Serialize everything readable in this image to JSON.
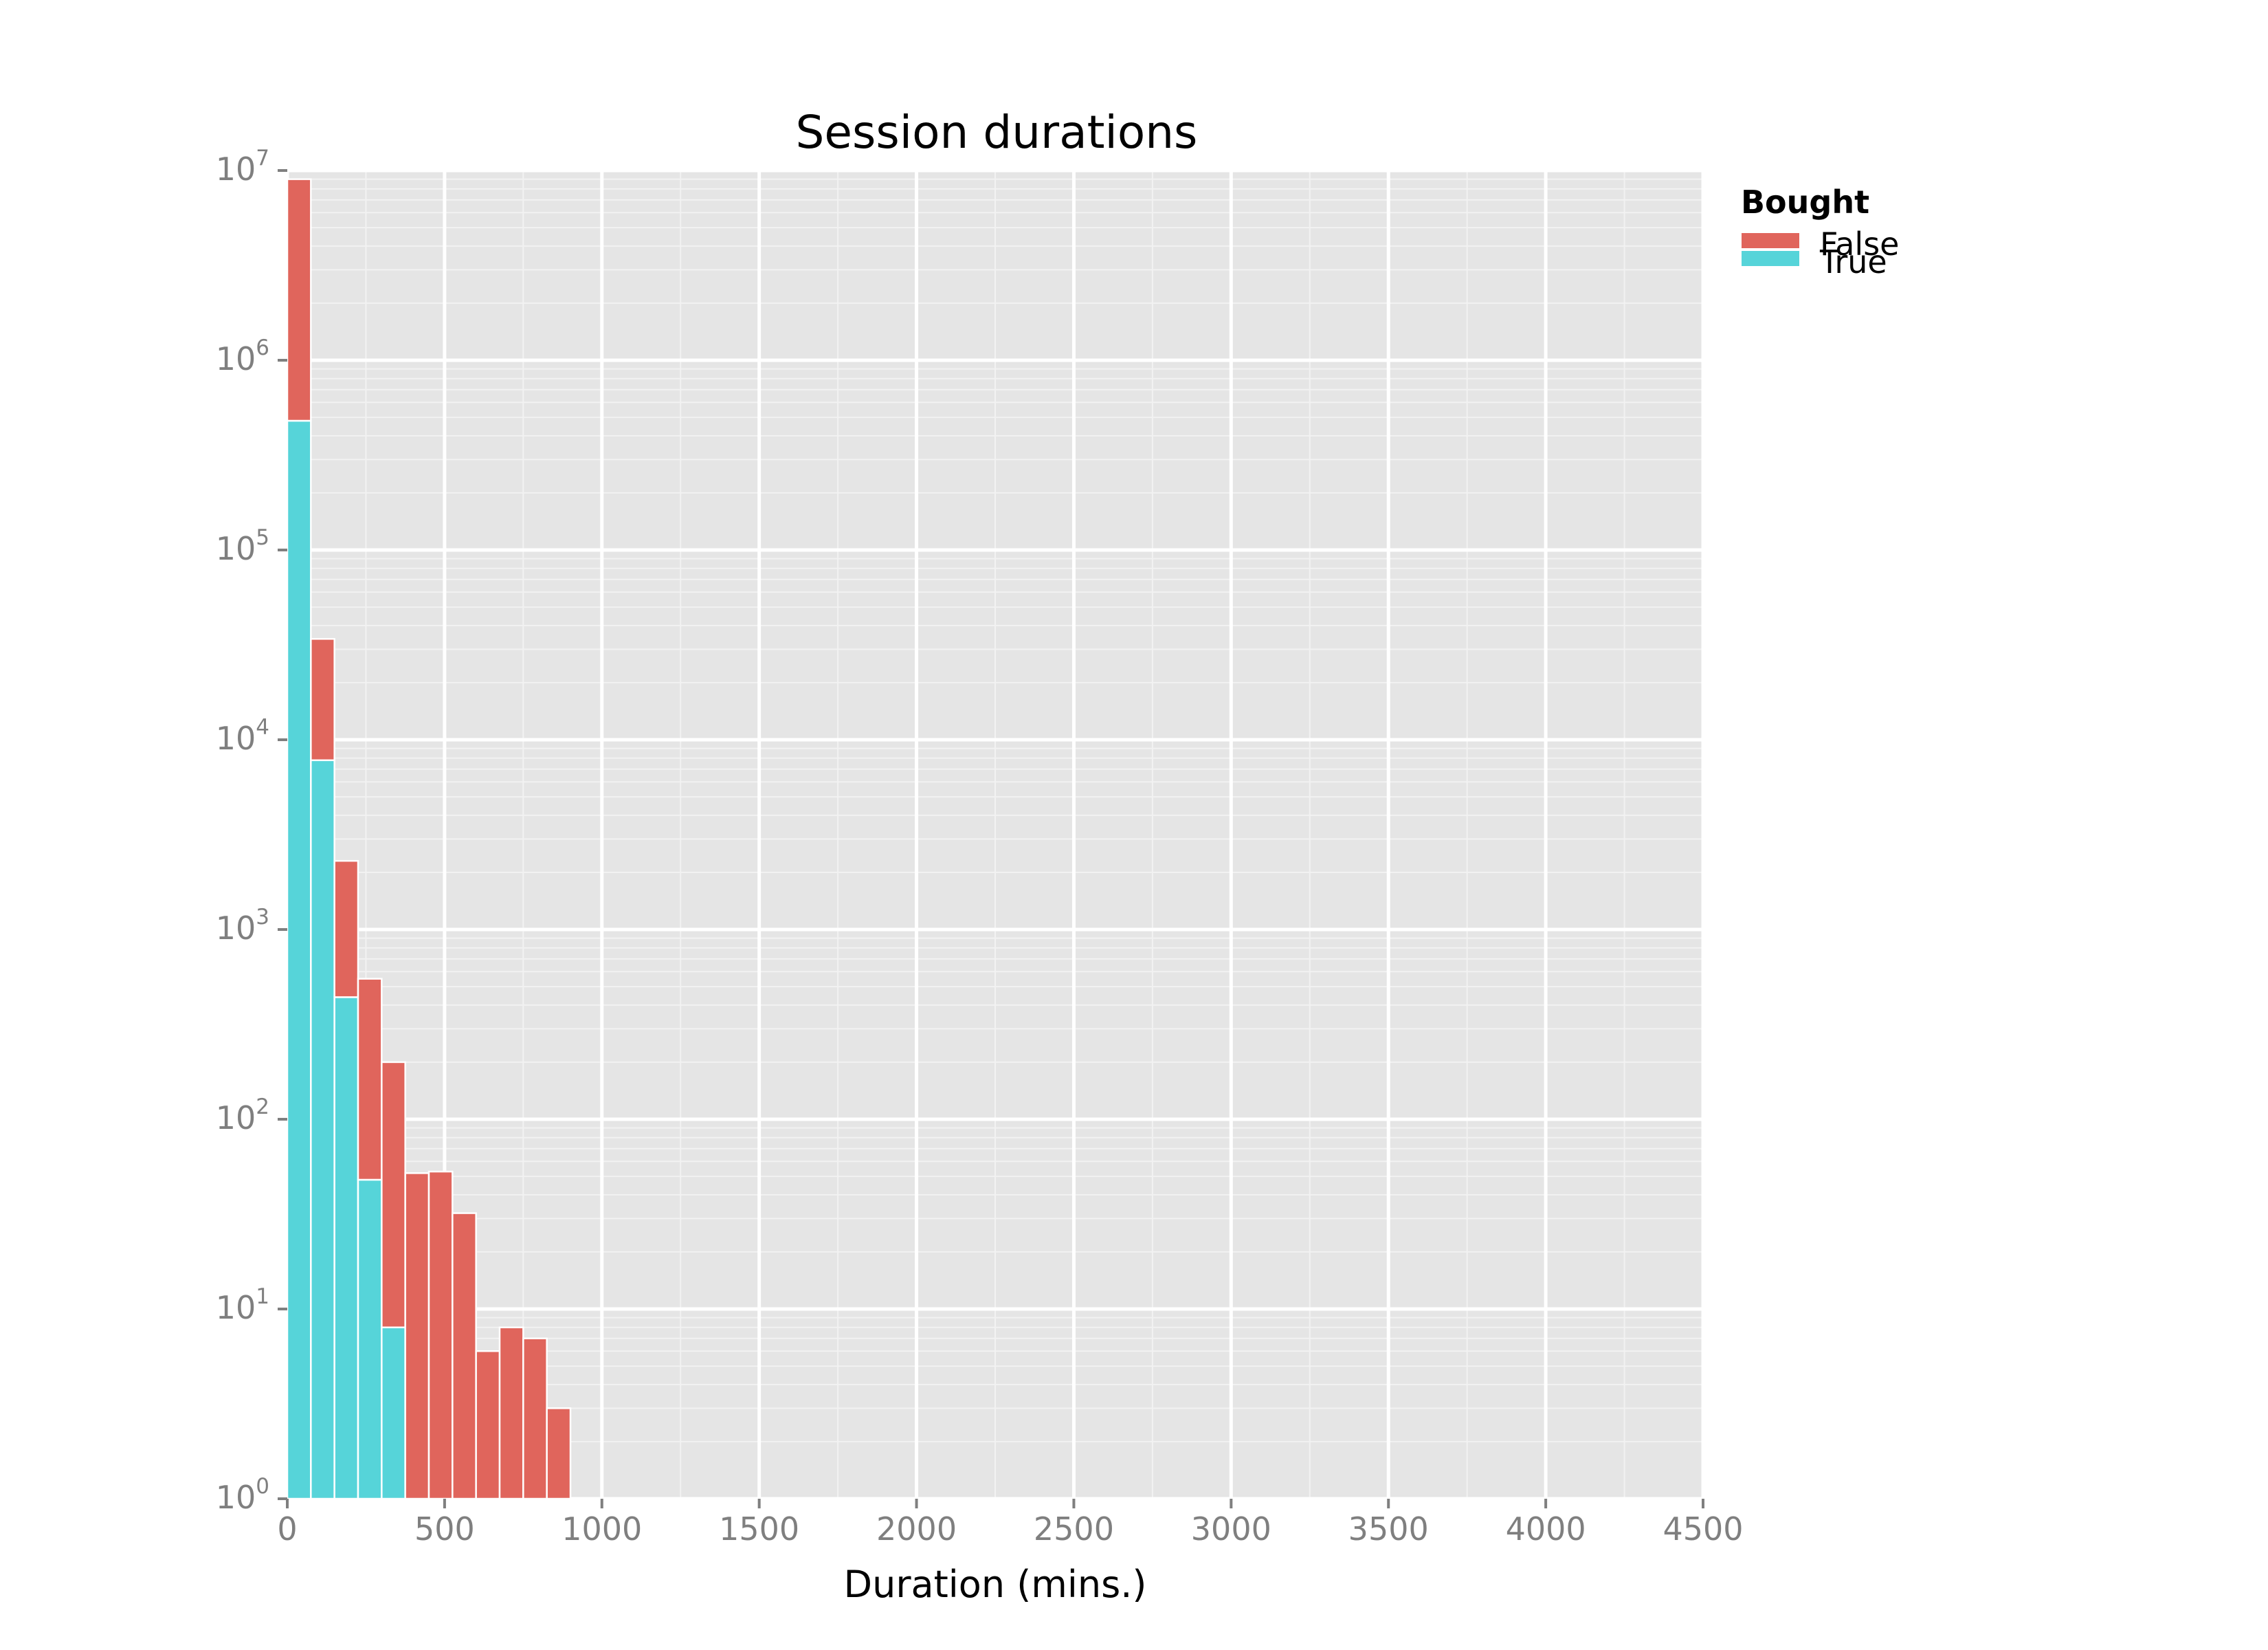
{
  "chart_data": {
    "type": "bar",
    "stacked": true,
    "title": "Session durations",
    "xlabel": "Duration (mins.)",
    "ylabel": "",
    "xlim": [
      0,
      4500
    ],
    "ylim": [
      1,
      10000000
    ],
    "yscale": "log",
    "grid": true,
    "bin_width": 75,
    "xticks": [
      "0",
      "500",
      "1000",
      "1500",
      "2000",
      "2500",
      "3000",
      "3500",
      "4000",
      "4500"
    ],
    "yticks": [
      {
        "base": "10",
        "exp": "0"
      },
      {
        "base": "10",
        "exp": "1"
      },
      {
        "base": "10",
        "exp": "2"
      },
      {
        "base": "10",
        "exp": "3"
      },
      {
        "base": "10",
        "exp": "4"
      },
      {
        "base": "10",
        "exp": "5"
      },
      {
        "base": "10",
        "exp": "6"
      },
      {
        "base": "10",
        "exp": "7"
      }
    ],
    "legend": {
      "title": "Bought",
      "position": "right"
    },
    "bins": [
      0,
      75,
      150,
      225,
      300,
      375,
      450,
      525,
      600,
      675,
      750,
      825
    ],
    "series": [
      {
        "name": "True",
        "color": "#56d4d9",
        "values": [
          480000,
          7800,
          440,
          48,
          8,
          0,
          0,
          0,
          0,
          0,
          0,
          0
        ]
      },
      {
        "name": "False",
        "color": "#e0655c",
        "values": [
          8520000,
          26200,
          1860,
          502,
          192,
          52,
          53,
          32,
          6,
          8,
          7,
          3
        ]
      }
    ]
  }
}
